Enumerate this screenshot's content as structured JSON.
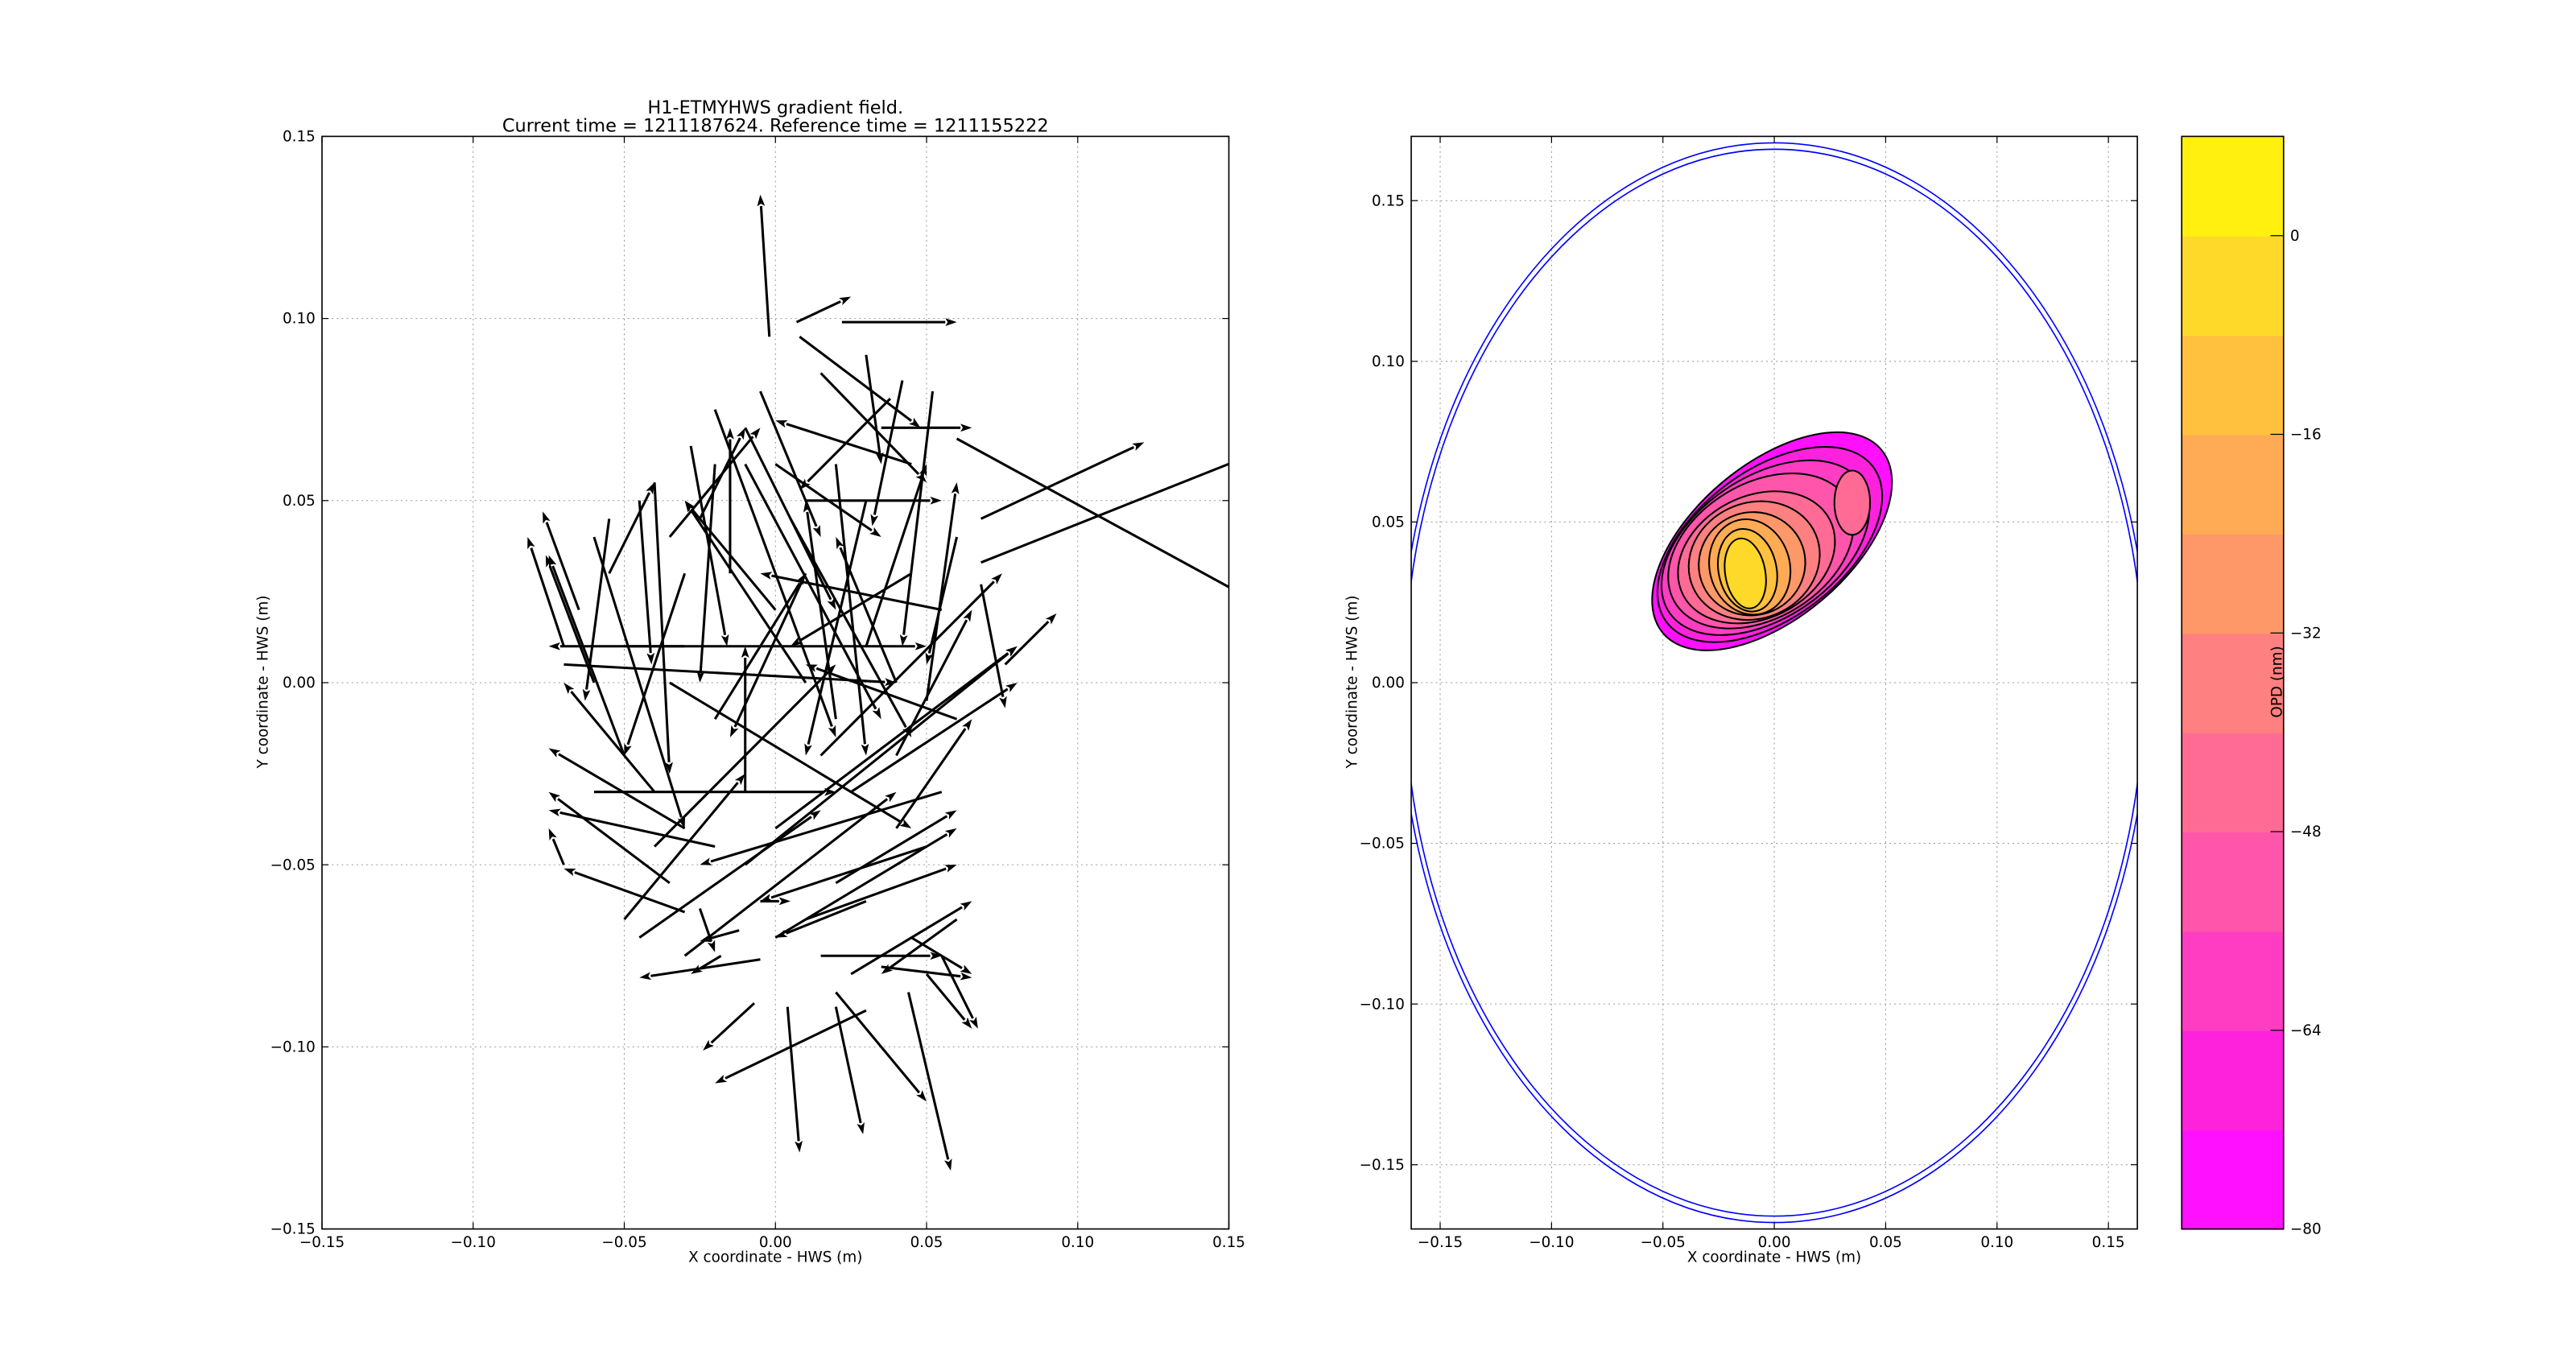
{
  "chart_data": [
    {
      "type": "quiver",
      "title": "H1-ETMYHWS gradient field.",
      "subtitle": "Current time = 1211187624. Reference time = 1211155222",
      "xlabel": "X coordinate - HWS (m)",
      "ylabel": "Y coordinate - HWS (m)",
      "xlim": [
        -0.15,
        0.15
      ],
      "ylim": [
        -0.15,
        0.15
      ],
      "xticks": [
        "−0.15",
        "−0.10",
        "−0.05",
        "0.00",
        "0.05",
        "0.10",
        "0.15"
      ],
      "yticks": [
        "−0.15",
        "−0.10",
        "−0.05",
        "0.00",
        "0.05",
        "0.10",
        "0.15"
      ],
      "xtick_values": [
        -0.15,
        -0.1,
        -0.05,
        0,
        0.05,
        0.1,
        0.15
      ],
      "ytick_values": [
        -0.15,
        -0.1,
        -0.05,
        0,
        0.05,
        0.1,
        0.15
      ],
      "grid": true,
      "arrow_color": "#000000",
      "arrows_xy_dxdy": [
        [
          -0.002,
          0.095,
          -0.003,
          0.039
        ],
        [
          0.007,
          0.099,
          0.018,
          0.007
        ],
        [
          0.022,
          0.099,
          0.038,
          0.0
        ],
        [
          0.06,
          0.067,
          0.095,
          -0.043
        ],
        [
          0.068,
          0.045,
          0.054,
          0.021
        ],
        [
          0.068,
          0.033,
          0.1,
          0.033
        ],
        [
          0.076,
          0.005,
          0.017,
          0.014
        ],
        [
          0.068,
          0.027,
          0.008,
          -0.034
        ],
        [
          0.004,
          -0.089,
          0.004,
          -0.04
        ],
        [
          0.02,
          -0.089,
          0.009,
          -0.035
        ],
        [
          0.044,
          -0.085,
          0.014,
          -0.049
        ],
        [
          -0.007,
          -0.088,
          -0.017,
          -0.013
        ],
        [
          0.008,
          0.095,
          0.04,
          -0.025
        ],
        [
          0.015,
          0.085,
          0.035,
          -0.03
        ],
        [
          0.03,
          0.09,
          0.005,
          -0.03
        ],
        [
          0.042,
          0.083,
          -0.01,
          -0.04
        ],
        [
          0.052,
          0.08,
          -0.01,
          -0.07
        ],
        [
          0.038,
          0.078,
          -0.03,
          -0.025
        ],
        [
          -0.01,
          0.07,
          0.03,
          -0.05
        ],
        [
          -0.02,
          0.06,
          -0.005,
          -0.06
        ],
        [
          -0.028,
          0.065,
          0.012,
          -0.055
        ],
        [
          0.0,
          0.06,
          0.035,
          -0.02
        ],
        [
          0.01,
          0.05,
          0.045,
          0.0
        ],
        [
          -0.035,
          0.04,
          0.03,
          0.03
        ],
        [
          -0.045,
          0.05,
          0.004,
          -0.045
        ],
        [
          -0.055,
          0.045,
          -0.008,
          -0.05
        ],
        [
          -0.065,
          0.02,
          -0.012,
          0.027
        ],
        [
          -0.07,
          0.01,
          -0.012,
          0.03
        ],
        [
          -0.06,
          0.0,
          -0.016,
          0.035
        ],
        [
          -0.05,
          -0.02,
          -0.025,
          0.055
        ],
        [
          -0.04,
          -0.03,
          -0.03,
          0.03
        ],
        [
          -0.03,
          0.01,
          -0.045,
          0.0
        ],
        [
          -0.02,
          -0.045,
          -0.055,
          0.01
        ],
        [
          -0.03,
          -0.04,
          -0.045,
          0.022
        ],
        [
          -0.035,
          -0.055,
          -0.04,
          0.025
        ],
        [
          -0.03,
          -0.063,
          -0.04,
          0.012
        ],
        [
          -0.05,
          -0.065,
          0.04,
          0.04
        ],
        [
          -0.045,
          -0.07,
          0.06,
          0.035
        ],
        [
          -0.03,
          -0.075,
          0.07,
          0.045
        ],
        [
          -0.01,
          -0.03,
          0.0,
          0.04
        ],
        [
          -0.02,
          -0.01,
          0.03,
          0.04
        ],
        [
          -0.015,
          0.03,
          0.0,
          0.04
        ],
        [
          0.0,
          0.02,
          -0.03,
          0.03
        ],
        [
          0.01,
          0.0,
          -0.04,
          0.05
        ],
        [
          0.02,
          -0.01,
          -0.01,
          0.06
        ],
        [
          0.03,
          0.01,
          0.02,
          0.05
        ],
        [
          0.04,
          0.0,
          -0.02,
          0.04
        ],
        [
          0.05,
          -0.005,
          0.01,
          0.06
        ],
        [
          0.055,
          0.02,
          -0.06,
          0.01
        ],
        [
          0.045,
          0.03,
          -0.04,
          -0.02
        ],
        [
          0.06,
          -0.01,
          -0.05,
          0.015
        ],
        [
          0.055,
          -0.03,
          -0.08,
          -0.02
        ],
        [
          0.05,
          -0.045,
          -0.055,
          -0.015
        ],
        [
          0.04,
          -0.04,
          0.025,
          0.03
        ],
        [
          0.03,
          -0.06,
          -0.03,
          -0.01
        ],
        [
          0.02,
          -0.055,
          0.04,
          0.02
        ],
        [
          0.01,
          -0.065,
          0.05,
          0.015
        ],
        [
          0.0,
          -0.07,
          0.06,
          0.03
        ],
        [
          0.015,
          -0.075,
          0.04,
          0.0
        ],
        [
          0.025,
          -0.08,
          0.04,
          0.02
        ],
        [
          0.035,
          -0.078,
          0.03,
          -0.003
        ],
        [
          0.045,
          -0.07,
          0.02,
          -0.01
        ],
        [
          0.05,
          -0.08,
          0.015,
          -0.015
        ],
        [
          0.055,
          -0.075,
          0.012,
          -0.02
        ],
        [
          0.06,
          -0.065,
          -0.025,
          -0.015
        ],
        [
          0.03,
          -0.09,
          -0.05,
          -0.02
        ],
        [
          0.02,
          -0.085,
          0.03,
          -0.03
        ],
        [
          -0.005,
          -0.06,
          0.01,
          0.0
        ],
        [
          -0.012,
          -0.068,
          -0.013,
          -0.003
        ],
        [
          -0.025,
          -0.062,
          0.005,
          -0.012
        ],
        [
          -0.018,
          -0.075,
          -0.01,
          -0.005
        ],
        [
          -0.005,
          -0.076,
          -0.04,
          -0.005
        ],
        [
          -0.06,
          0.04,
          0.03,
          -0.08
        ],
        [
          -0.04,
          0.055,
          0.005,
          -0.08
        ],
        [
          -0.02,
          0.075,
          0.04,
          -0.09
        ],
        [
          -0.01,
          0.06,
          0.045,
          -0.07
        ],
        [
          0.005,
          0.045,
          0.04,
          -0.06
        ],
        [
          0.02,
          0.06,
          0.01,
          -0.08
        ],
        [
          0.03,
          0.05,
          -0.02,
          -0.07
        ],
        [
          -0.035,
          0.0,
          0.08,
          -0.04
        ],
        [
          -0.05,
          0.01,
          0.1,
          0.0
        ],
        [
          -0.07,
          0.005,
          0.11,
          -0.005
        ],
        [
          -0.06,
          -0.03,
          0.08,
          0.0
        ],
        [
          -0.04,
          -0.045,
          0.06,
          0.05
        ],
        [
          -0.01,
          -0.05,
          0.09,
          0.06
        ],
        [
          0.0,
          -0.04,
          0.08,
          0.05
        ],
        [
          0.015,
          -0.02,
          0.06,
          0.05
        ],
        [
          0.025,
          -0.03,
          0.055,
          0.03
        ],
        [
          0.04,
          -0.02,
          0.025,
          0.04
        ],
        [
          0.06,
          0.04,
          -0.01,
          -0.035
        ],
        [
          -0.025,
          0.045,
          0.015,
          0.025
        ],
        [
          -0.005,
          0.08,
          0.02,
          -0.04
        ],
        [
          0.035,
          0.07,
          0.03,
          0.0
        ],
        [
          0.045,
          0.06,
          -0.045,
          0.012
        ],
        [
          0.01,
          0.03,
          -0.025,
          -0.045
        ],
        [
          -0.03,
          0.03,
          -0.02,
          -0.05
        ],
        [
          -0.055,
          0.03,
          0.015,
          0.025
        ],
        [
          0.005,
          -0.09,
          0.0,
          -0.0
        ],
        [
          -0.07,
          -0.05,
          -0.005,
          0.01
        ]
      ]
    },
    {
      "type": "contourf",
      "xlabel": "X coordinate - HWS (m)",
      "ylabel": "Y coordinate - HWS (m)",
      "xlim": [
        -0.163,
        0.163
      ],
      "ylim": [
        -0.17,
        0.17
      ],
      "xticks": [
        "−0.15",
        "−0.10",
        "−0.05",
        "0.00",
        "0.05",
        "0.10",
        "0.15"
      ],
      "yticks": [
        "−0.15",
        "−0.10",
        "−0.05",
        "0.00",
        "0.05",
        "0.10",
        "0.15"
      ],
      "xtick_values": [
        -0.15,
        -0.1,
        -0.05,
        0,
        0.05,
        0.1,
        0.15
      ],
      "ytick_values": [
        -0.15,
        -0.1,
        -0.05,
        0,
        0.05,
        0.1,
        0.15
      ],
      "grid": true,
      "aperture_radius_m": [
        0.168,
        0.166
      ],
      "aperture_color": "#0000ff",
      "contours": [
        {
          "level": -80,
          "cx": -0.001,
          "cy": 0.044,
          "rx": 0.064,
          "ry": 0.024,
          "angle": -40
        },
        {
          "level": -72,
          "cx": -0.002,
          "cy": 0.043,
          "rx": 0.058,
          "ry": 0.023,
          "angle": -37
        },
        {
          "level": -64,
          "cx": -0.004,
          "cy": 0.042,
          "rx": 0.052,
          "ry": 0.022,
          "angle": -34
        },
        {
          "level": -56,
          "cx": -0.006,
          "cy": 0.041,
          "rx": 0.045,
          "ry": 0.021,
          "angle": -31
        },
        {
          "level": -48,
          "cx": -0.008,
          "cy": 0.039,
          "rx": 0.037,
          "ry": 0.019,
          "angle": -27
        },
        {
          "level": -40,
          "cx": -0.009,
          "cy": 0.038,
          "rx": 0.03,
          "ry": 0.018,
          "angle": -23
        },
        {
          "level": -32,
          "cx": -0.01,
          "cy": 0.037,
          "rx": 0.024,
          "ry": 0.016,
          "angle": -19
        },
        {
          "level": -24,
          "cx": -0.011,
          "cy": 0.036,
          "rx": 0.018,
          "ry": 0.015,
          "angle": -15
        },
        {
          "level": -16,
          "cx": -0.012,
          "cy": 0.035,
          "rx": 0.013,
          "ry": 0.013,
          "angle": -12
        },
        {
          "level": -8,
          "cx": -0.013,
          "cy": 0.034,
          "rx": 0.009,
          "ry": 0.011,
          "angle": -10
        },
        {
          "level": -48,
          "cx": 0.035,
          "cy": 0.056,
          "rx": 0.008,
          "ry": 0.01,
          "angle": 0
        }
      ]
    },
    {
      "type": "colorbar",
      "label": "OPD (nm)",
      "range": [
        -80,
        8
      ],
      "levels": [
        -80,
        -72,
        -64,
        -56,
        -48,
        -40,
        -32,
        -24,
        -16,
        -8,
        0,
        8
      ],
      "band_colors": [
        "#ff10ff",
        "#ff22dd",
        "#ff3dc2",
        "#ff55aa",
        "#ff6b95",
        "#ff8080",
        "#ff9868",
        "#ffaa55",
        "#ffc13e",
        "#ffd92a",
        "#fff010"
      ],
      "ticks": [
        "0",
        "−16",
        "−32",
        "−48",
        "−64",
        "−80"
      ],
      "tick_values": [
        0,
        -16,
        -32,
        -48,
        -64,
        -80
      ]
    }
  ]
}
